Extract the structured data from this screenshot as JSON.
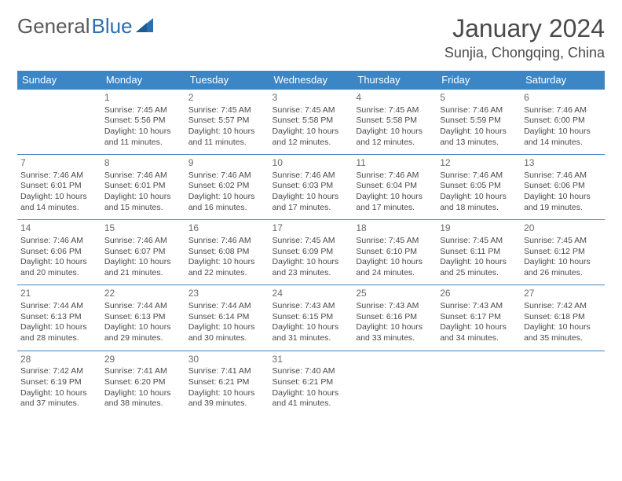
{
  "brand": {
    "part1": "General",
    "part2": "Blue"
  },
  "title": "January 2024",
  "location": "Sunjia, Chongqing, China",
  "colors": {
    "header_bg": "#3d86c6",
    "header_text": "#ffffff",
    "border": "#3d86c6",
    "body_text": "#4a4a4a",
    "brand_gray": "#5a5a5a",
    "brand_blue": "#2b6fb0",
    "background": "#ffffff"
  },
  "daynames": [
    "Sunday",
    "Monday",
    "Tuesday",
    "Wednesday",
    "Thursday",
    "Friday",
    "Saturday"
  ],
  "weeks": [
    [
      null,
      {
        "n": "1",
        "sr": "7:45 AM",
        "ss": "5:56 PM",
        "dl": "10 hours and 11 minutes."
      },
      {
        "n": "2",
        "sr": "7:45 AM",
        "ss": "5:57 PM",
        "dl": "10 hours and 11 minutes."
      },
      {
        "n": "3",
        "sr": "7:45 AM",
        "ss": "5:58 PM",
        "dl": "10 hours and 12 minutes."
      },
      {
        "n": "4",
        "sr": "7:45 AM",
        "ss": "5:58 PM",
        "dl": "10 hours and 12 minutes."
      },
      {
        "n": "5",
        "sr": "7:46 AM",
        "ss": "5:59 PM",
        "dl": "10 hours and 13 minutes."
      },
      {
        "n": "6",
        "sr": "7:46 AM",
        "ss": "6:00 PM",
        "dl": "10 hours and 14 minutes."
      }
    ],
    [
      {
        "n": "7",
        "sr": "7:46 AM",
        "ss": "6:01 PM",
        "dl": "10 hours and 14 minutes."
      },
      {
        "n": "8",
        "sr": "7:46 AM",
        "ss": "6:01 PM",
        "dl": "10 hours and 15 minutes."
      },
      {
        "n": "9",
        "sr": "7:46 AM",
        "ss": "6:02 PM",
        "dl": "10 hours and 16 minutes."
      },
      {
        "n": "10",
        "sr": "7:46 AM",
        "ss": "6:03 PM",
        "dl": "10 hours and 17 minutes."
      },
      {
        "n": "11",
        "sr": "7:46 AM",
        "ss": "6:04 PM",
        "dl": "10 hours and 17 minutes."
      },
      {
        "n": "12",
        "sr": "7:46 AM",
        "ss": "6:05 PM",
        "dl": "10 hours and 18 minutes."
      },
      {
        "n": "13",
        "sr": "7:46 AM",
        "ss": "6:06 PM",
        "dl": "10 hours and 19 minutes."
      }
    ],
    [
      {
        "n": "14",
        "sr": "7:46 AM",
        "ss": "6:06 PM",
        "dl": "10 hours and 20 minutes."
      },
      {
        "n": "15",
        "sr": "7:46 AM",
        "ss": "6:07 PM",
        "dl": "10 hours and 21 minutes."
      },
      {
        "n": "16",
        "sr": "7:46 AM",
        "ss": "6:08 PM",
        "dl": "10 hours and 22 minutes."
      },
      {
        "n": "17",
        "sr": "7:45 AM",
        "ss": "6:09 PM",
        "dl": "10 hours and 23 minutes."
      },
      {
        "n": "18",
        "sr": "7:45 AM",
        "ss": "6:10 PM",
        "dl": "10 hours and 24 minutes."
      },
      {
        "n": "19",
        "sr": "7:45 AM",
        "ss": "6:11 PM",
        "dl": "10 hours and 25 minutes."
      },
      {
        "n": "20",
        "sr": "7:45 AM",
        "ss": "6:12 PM",
        "dl": "10 hours and 26 minutes."
      }
    ],
    [
      {
        "n": "21",
        "sr": "7:44 AM",
        "ss": "6:13 PM",
        "dl": "10 hours and 28 minutes."
      },
      {
        "n": "22",
        "sr": "7:44 AM",
        "ss": "6:13 PM",
        "dl": "10 hours and 29 minutes."
      },
      {
        "n": "23",
        "sr": "7:44 AM",
        "ss": "6:14 PM",
        "dl": "10 hours and 30 minutes."
      },
      {
        "n": "24",
        "sr": "7:43 AM",
        "ss": "6:15 PM",
        "dl": "10 hours and 31 minutes."
      },
      {
        "n": "25",
        "sr": "7:43 AM",
        "ss": "6:16 PM",
        "dl": "10 hours and 33 minutes."
      },
      {
        "n": "26",
        "sr": "7:43 AM",
        "ss": "6:17 PM",
        "dl": "10 hours and 34 minutes."
      },
      {
        "n": "27",
        "sr": "7:42 AM",
        "ss": "6:18 PM",
        "dl": "10 hours and 35 minutes."
      }
    ],
    [
      {
        "n": "28",
        "sr": "7:42 AM",
        "ss": "6:19 PM",
        "dl": "10 hours and 37 minutes."
      },
      {
        "n": "29",
        "sr": "7:41 AM",
        "ss": "6:20 PM",
        "dl": "10 hours and 38 minutes."
      },
      {
        "n": "30",
        "sr": "7:41 AM",
        "ss": "6:21 PM",
        "dl": "10 hours and 39 minutes."
      },
      {
        "n": "31",
        "sr": "7:40 AM",
        "ss": "6:21 PM",
        "dl": "10 hours and 41 minutes."
      },
      null,
      null,
      null
    ]
  ],
  "labels": {
    "sunrise": "Sunrise:",
    "sunset": "Sunset:",
    "daylight": "Daylight:"
  }
}
